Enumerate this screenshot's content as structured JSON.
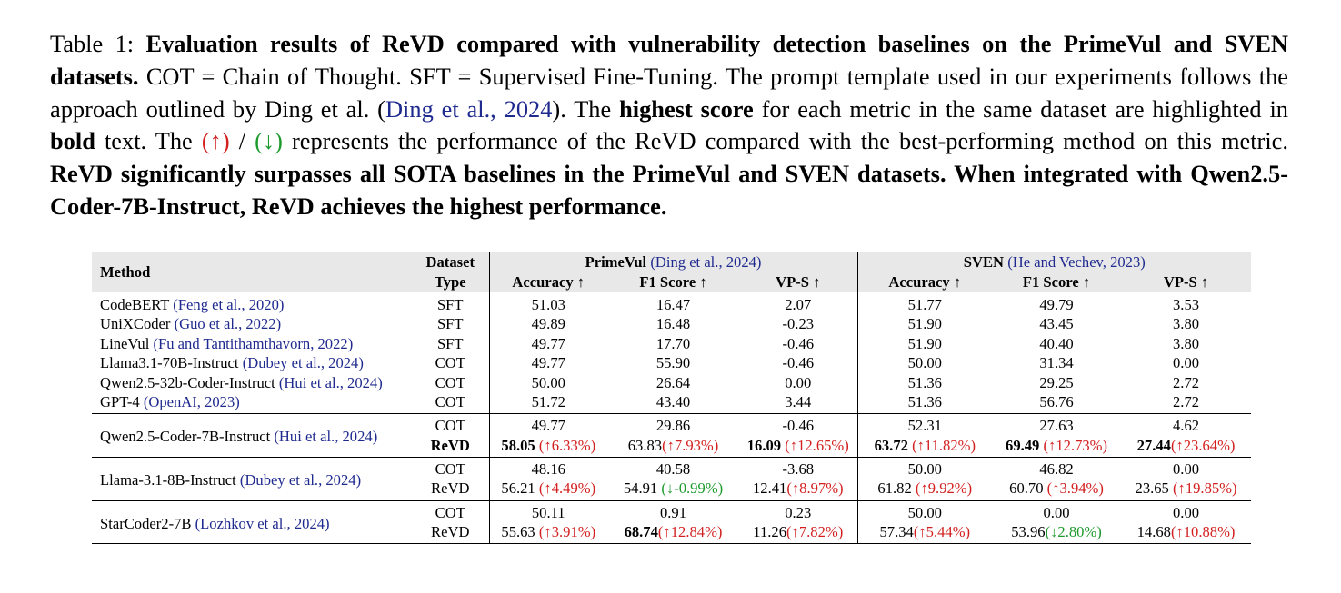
{
  "caption": {
    "label": "Table 1:",
    "title": "Evaluation results of ReVD compared with vulnerability detection baselines on the PrimeVul and SVEN datasets.",
    "sentence1": "COT = Chain of Thought.",
    "sentence2": "SFT = Supervised Fine-Tuning.",
    "sentence3_pre": "The prompt template used in our experiments follows the approach outlined by Ding et al. (",
    "sentence3_cite_author": "Ding et al.",
    "sentence3_cite_sep": ", ",
    "sentence3_cite_year": "2024",
    "sentence3_post": ").",
    "sentence4_pre": "The",
    "sentence4_bold": "highest score",
    "sentence4_mid": "for each metric in the same dataset are highlighted in",
    "sentence4_bold2": "bold",
    "sentence4_post": "text.",
    "sentence5_pre": "The",
    "arrow_up": "(↑)",
    "slash": "/",
    "arrow_down": "(↓)",
    "sentence5_post": "represents the performance of the ReVD compared with the best-performing method on this metric.",
    "conclusion": "ReVD significantly surpasses all SOTA baselines in the PrimeVul and SVEN datasets. When integrated with Qwen2.5-Coder-7B-Instruct, ReVD achieves the highest performance."
  },
  "table": {
    "header": {
      "method": "Method",
      "dataset_type_1": "Dataset",
      "dataset_type_2": "Type",
      "primevul_name": "PrimeVul",
      "primevul_cite": "(Ding et al., 2024)",
      "sven_name": "SVEN",
      "sven_cite": "(He and Vechev, 2023)",
      "metrics": [
        "Accuracy ↑",
        "F1 Score ↑",
        "VP-S ↑",
        "Accuracy ↑",
        "F1 Score ↑",
        "VP-S ↑"
      ]
    },
    "baselines": [
      {
        "name": "CodeBERT",
        "cite": "(Feng et al., 2020)",
        "type": "SFT",
        "vals": [
          "51.03",
          "16.47",
          "2.07",
          "51.77",
          "49.79",
          "3.53"
        ]
      },
      {
        "name": "UniXCoder",
        "cite": "(Guo et al., 2022)",
        "type": "SFT",
        "vals": [
          "49.89",
          "16.48",
          "-0.23",
          "51.90",
          "43.45",
          "3.80"
        ]
      },
      {
        "name": "LineVul",
        "cite": "(Fu and Tantithamthavorn, 2022)",
        "type": "SFT",
        "vals": [
          "49.77",
          "17.70",
          "-0.46",
          "51.90",
          "40.40",
          "3.80"
        ]
      },
      {
        "name": "Llama3.1-70B-Instruct",
        "cite": "(Dubey et al., 2024)",
        "type": "COT",
        "vals": [
          "49.77",
          "55.90",
          "-0.46",
          "50.00",
          "31.34",
          "0.00"
        ]
      },
      {
        "name": "Qwen2.5-32b-Coder-Instruct",
        "cite": "(Hui et al., 2024)",
        "type": "COT",
        "vals": [
          "50.00",
          "26.64",
          "0.00",
          "51.36",
          "29.25",
          "2.72"
        ]
      },
      {
        "name": "GPT-4",
        "cite": "(OpenAI, 2023)",
        "type": "COT",
        "vals": [
          "51.72",
          "43.40",
          "3.44",
          "51.36",
          "56.76",
          "2.72"
        ]
      }
    ],
    "groups": [
      {
        "name": "Qwen2.5-Coder-7B-Instruct",
        "cite": "(Hui et al., 2024)",
        "cot": {
          "type": "COT",
          "vals": [
            "49.77",
            "29.86",
            "-0.46",
            "52.31",
            "27.63",
            "4.62"
          ]
        },
        "revd": {
          "type": "ReVD",
          "vals": [
            "58.05",
            "63.83",
            "16.09",
            "63.72",
            "69.49",
            "27.44"
          ],
          "deltas": [
            "(↑6.33%)",
            "(↑7.93%)",
            "(↑12.65%)",
            "(↑11.82%)",
            "(↑12.73%)",
            "(↑23.64%)"
          ]
        }
      },
      {
        "name": "Llama-3.1-8B-Instruct",
        "cite": "(Dubey et al., 2024)",
        "cot": {
          "type": "COT",
          "vals": [
            "48.16",
            "40.58",
            "-3.68",
            "50.00",
            "46.82",
            "0.00"
          ]
        },
        "revd": {
          "type": "ReVD",
          "vals": [
            "56.21",
            "54.91",
            "12.41",
            "61.82",
            "60.70",
            "23.65"
          ],
          "deltas": [
            "(↑4.49%)",
            "(↓-0.99%)",
            "(↑8.97%)",
            "(↑9.92%)",
            "(↑3.94%)",
            "(↑19.85%)"
          ]
        }
      },
      {
        "name": "StarCoder2-7B",
        "cite": "(Lozhkov et al., 2024)",
        "cot": {
          "type": "COT",
          "vals": [
            "50.11",
            "0.91",
            "0.23",
            "50.00",
            "0.00",
            "0.00"
          ]
        },
        "revd": {
          "type": "ReVD",
          "vals": [
            "55.63",
            "68.74",
            "11.26",
            "57.34",
            "53.96",
            "14.68"
          ],
          "deltas": [
            "(↑3.91%)",
            "(↑12.84%)",
            "(↑7.82%)",
            "(↑5.44%)",
            "(↓2.80%)",
            "(↑10.88%)"
          ]
        }
      }
    ]
  }
}
